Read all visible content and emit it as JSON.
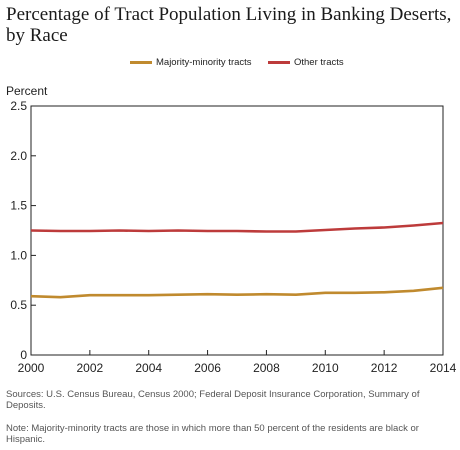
{
  "title": "Percentage of Tract Population Living in Banking Deserts, by Race",
  "sources": "Sources: U.S. Census Bureau, Census 2000; Federal Deposit Insurance Corporation, Summary of Deposits.",
  "note": "Note: Majority-minority tracts are those in which more than 50 percent of the residents are black or Hispanic.",
  "chart_data": {
    "type": "line",
    "title": "Percentage of Tract Population Living in Banking Deserts, by Race",
    "ylabel": "Percent",
    "xlabel": "",
    "xlim": [
      2000,
      2014
    ],
    "ylim": [
      0,
      2.5
    ],
    "x_ticks": [
      "2000",
      "2002",
      "2004",
      "2006",
      "2008",
      "2010",
      "2012",
      "2014"
    ],
    "y_ticks": [
      "0",
      "0.5",
      "1.0",
      "1.5",
      "2.0",
      "2.5"
    ],
    "grid": false,
    "legend_position": "top",
    "x": [
      2000,
      2001,
      2002,
      2003,
      2004,
      2005,
      2006,
      2007,
      2008,
      2009,
      2010,
      2011,
      2012,
      2013,
      2014
    ],
    "series": [
      {
        "name": "Majority-minority tracts",
        "color": "#c08a2e",
        "values": [
          0.59,
          0.58,
          0.6,
          0.6,
          0.6,
          0.605,
          0.61,
          0.605,
          0.61,
          0.605,
          0.625,
          0.625,
          0.63,
          0.645,
          0.675
        ]
      },
      {
        "name": "Other tracts",
        "color": "#bd3b3b",
        "values": [
          1.25,
          1.245,
          1.245,
          1.25,
          1.245,
          1.25,
          1.245,
          1.245,
          1.24,
          1.24,
          1.255,
          1.27,
          1.28,
          1.3,
          1.325
        ]
      }
    ]
  }
}
